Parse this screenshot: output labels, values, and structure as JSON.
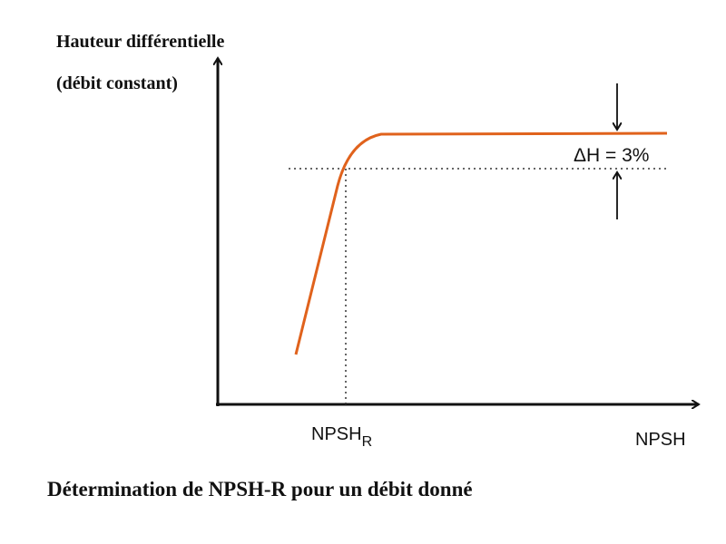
{
  "y_axis": {
    "line1": "Hauteur différentielle",
    "line2": "(débit constant)"
  },
  "delta_label": "ΔH = 3%",
  "npsh_r": {
    "main": "NPSH",
    "sub": "R"
  },
  "x_axis": {
    "label": "NPSH"
  },
  "caption": "Détermination de NPSH-R pour un débit donné"
}
